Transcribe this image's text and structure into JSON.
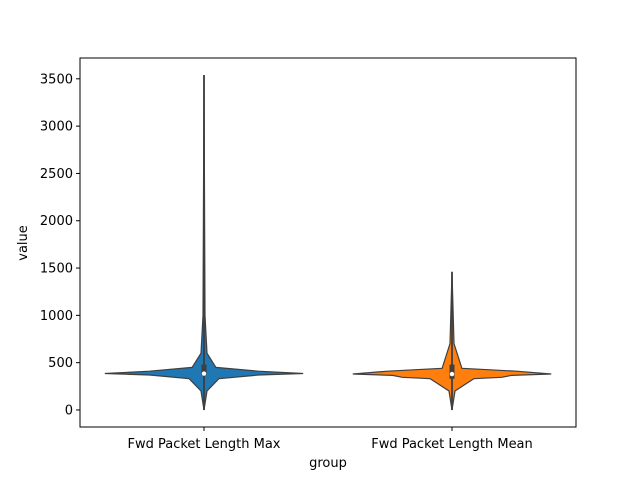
{
  "chart_data": {
    "type": "violin",
    "title": "",
    "xlabel": "group",
    "ylabel": "value",
    "ylim": [
      -180,
      3720
    ],
    "y_ticks": [
      0,
      500,
      1000,
      1500,
      2000,
      2500,
      3000,
      3500
    ],
    "categories": [
      "Fwd Packet Length Max",
      "Fwd Packet Length Mean"
    ],
    "series": [
      {
        "category": "Fwd Packet Length Max",
        "color": "#1f77b4",
        "min": 0,
        "q1": 370,
        "median": 385,
        "q3": 480,
        "max": 3540,
        "density_peak": 385,
        "density_profile": [
          [
            0,
            0.0
          ],
          [
            200,
            0.03
          ],
          [
            330,
            0.15
          ],
          [
            370,
            0.55
          ],
          [
            385,
            1.0
          ],
          [
            410,
            0.55
          ],
          [
            450,
            0.12
          ],
          [
            600,
            0.03
          ],
          [
            1000,
            0.01
          ],
          [
            3540,
            0.0
          ]
        ]
      },
      {
        "category": "Fwd Packet Length Mean",
        "color": "#ff7f0e",
        "min": 0,
        "q1": 330,
        "median": 380,
        "q3": 480,
        "max": 1460,
        "density_peak": 380,
        "density_profile": [
          [
            0,
            0.0
          ],
          [
            200,
            0.03
          ],
          [
            330,
            0.22
          ],
          [
            345,
            0.5
          ],
          [
            365,
            0.6
          ],
          [
            380,
            1.0
          ],
          [
            410,
            0.65
          ],
          [
            440,
            0.1
          ],
          [
            700,
            0.02
          ],
          [
            1460,
            0.0
          ]
        ]
      }
    ]
  }
}
